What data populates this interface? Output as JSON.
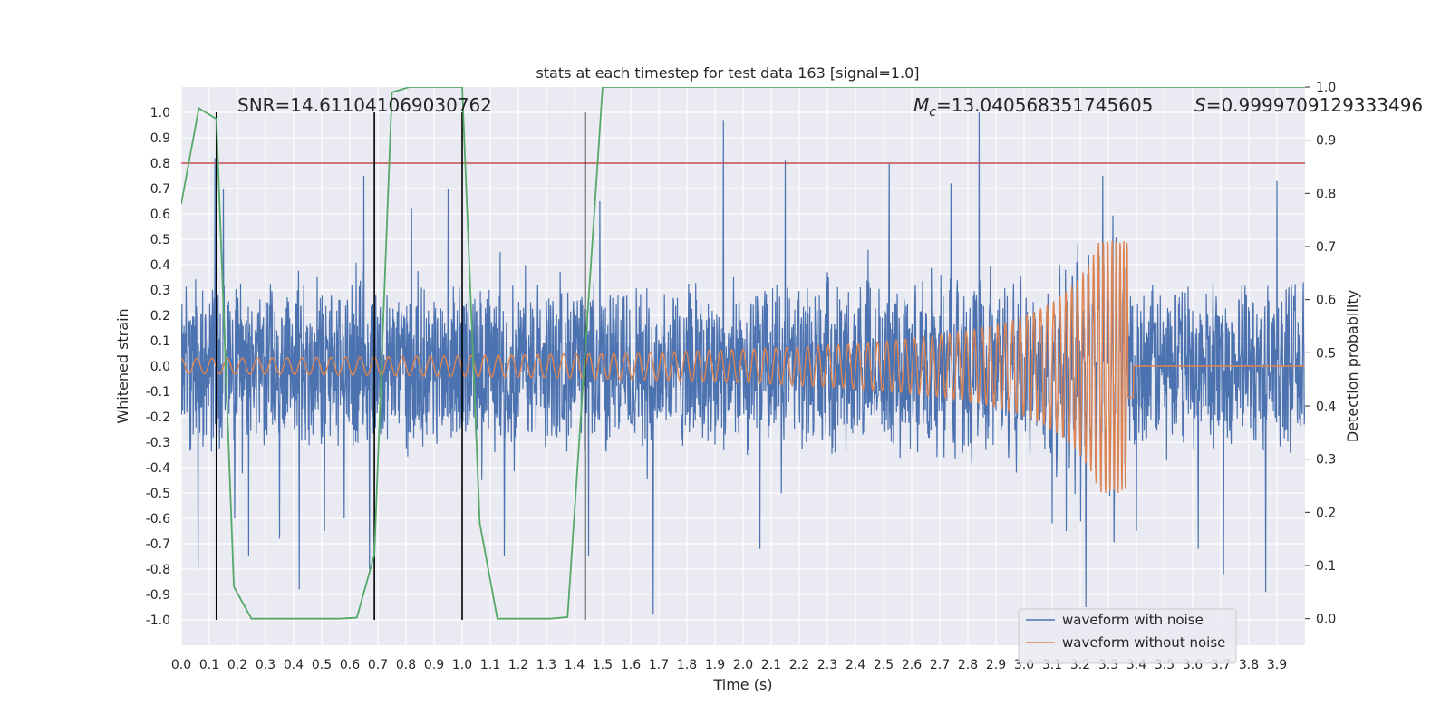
{
  "chart_data": {
    "type": "line",
    "title": "stats at each timestep for test data 163 [signal=1.0]",
    "xlabel": "Time (s)",
    "ylabel": "Whitened strain",
    "ylabel_right": "Detection probability",
    "xlim": [
      0.0,
      4.0
    ],
    "ylim": [
      -1.1,
      1.1
    ],
    "ylim_right": [
      -0.05,
      1.0
    ],
    "x_ticks": [
      "0.0",
      "0.1",
      "0.2",
      "0.3",
      "0.4",
      "0.5",
      "0.6",
      "0.7",
      "0.8",
      "0.9",
      "1.0",
      "1.1",
      "1.2",
      "1.3",
      "1.4",
      "1.5",
      "1.6",
      "1.7",
      "1.8",
      "1.9",
      "2.0",
      "2.1",
      "2.2",
      "2.3",
      "2.4",
      "2.5",
      "2.6",
      "2.7",
      "2.8",
      "2.9",
      "3.0",
      "3.1",
      "3.2",
      "3.3",
      "3.4",
      "3.5",
      "3.6",
      "3.7",
      "3.8",
      "3.9"
    ],
    "y_ticks": [
      "1.0",
      "0.9",
      "0.8",
      "0.7",
      "0.6",
      "0.5",
      "0.4",
      "0.3",
      "0.2",
      "0.1",
      "0.0",
      "-0.1",
      "-0.2",
      "-0.3",
      "-0.4",
      "-0.5",
      "-0.6",
      "-0.7",
      "-0.8",
      "-0.9",
      "-1.0"
    ],
    "y_ticks_right": [
      "1.0",
      "0.9",
      "0.8",
      "0.7",
      "0.6",
      "0.5",
      "0.4",
      "0.3",
      "0.2",
      "0.1",
      "0.0"
    ],
    "grid": true,
    "legend_position": "bottom-right",
    "annotations": {
      "snr": "SNR=14.611041069030762",
      "mc_symbol": "M",
      "mc_sub": "c",
      "mc_value": "=13.040568351745605",
      "s_symbol": "S",
      "s_value": "=0.9999709129333496"
    },
    "series": [
      {
        "name": "waveform with noise",
        "color": "#4c72b0",
        "axis": "left",
        "envelope_amplitude": 0.35,
        "spike_points": [
          [
            0.06,
            -0.8
          ],
          [
            0.12,
            0.82
          ],
          [
            0.15,
            0.7
          ],
          [
            0.19,
            -0.6
          ],
          [
            0.24,
            -0.75
          ],
          [
            0.35,
            -0.68
          ],
          [
            0.42,
            -0.88
          ],
          [
            0.51,
            -0.65
          ],
          [
            0.58,
            -0.6
          ],
          [
            0.65,
            0.75
          ],
          [
            0.67,
            -0.8
          ],
          [
            0.82,
            0.62
          ],
          [
            0.95,
            0.7
          ],
          [
            1.15,
            -0.75
          ],
          [
            1.45,
            -0.75
          ],
          [
            1.49,
            0.65
          ],
          [
            1.68,
            -0.98
          ],
          [
            1.93,
            0.97
          ],
          [
            2.06,
            -0.72
          ],
          [
            2.15,
            0.81
          ],
          [
            2.52,
            0.8
          ],
          [
            2.74,
            0.72
          ],
          [
            2.84,
            1.0
          ],
          [
            3.1,
            -0.62
          ],
          [
            3.15,
            -0.65
          ],
          [
            3.22,
            -0.95
          ],
          [
            3.28,
            0.75
          ],
          [
            3.4,
            -0.65
          ],
          [
            3.62,
            -0.72
          ],
          [
            3.71,
            -0.82
          ],
          [
            3.86,
            -0.89
          ],
          [
            3.9,
            0.73
          ]
        ]
      },
      {
        "name": "waveform without noise",
        "color": "#dd8452",
        "axis": "left",
        "chirp_start_amplitude": 0.03,
        "chirp_peak_amplitude": 0.5,
        "merger_time": 3.36,
        "merger_min": -0.67
      },
      {
        "name": "detection probability",
        "color": "#55a868",
        "axis": "right",
        "x": [
          0.0,
          0.0625,
          0.125,
          0.1875,
          0.25,
          0.3125,
          0.375,
          0.4375,
          0.5,
          0.5625,
          0.625,
          0.6875,
          0.75,
          0.8125,
          0.875,
          0.9375,
          1.0,
          1.0625,
          1.125,
          1.1875,
          1.25,
          1.3125,
          1.375,
          1.4375,
          1.5,
          4.0
        ],
        "y": [
          0.78,
          0.96,
          0.94,
          0.06,
          0.0,
          0.0,
          0.0,
          0.0,
          0.0,
          0.0,
          0.002,
          0.12,
          0.99,
          1.0,
          1.0,
          1.0,
          1.0,
          0.18,
          0.0,
          0.0,
          0.0,
          0.0,
          0.003,
          0.5,
          1.0,
          1.0
        ]
      }
    ],
    "threshold": {
      "value": 0.8,
      "axis": "left",
      "color": "#c44e52"
    },
    "event_markers": [
      0.125,
      0.6875,
      1.0,
      1.4375
    ]
  }
}
